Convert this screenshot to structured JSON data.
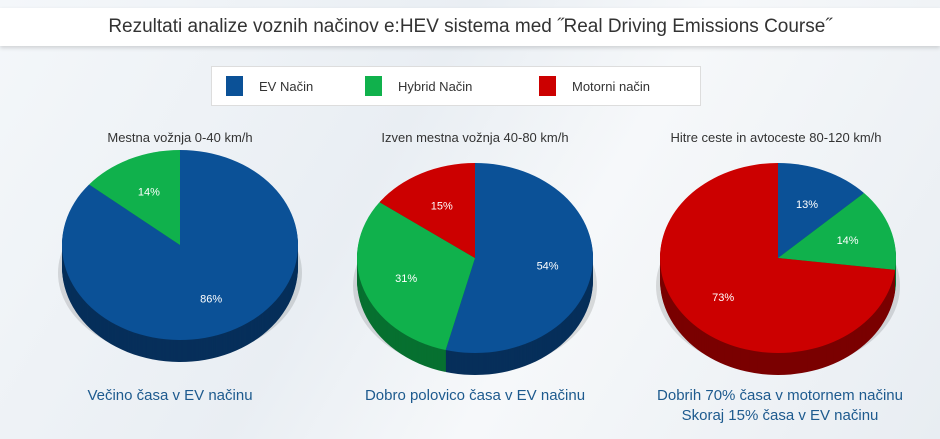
{
  "title": "Rezultati analize voznih načinov e:HEV sistema med ˝Real Driving Emissions Course˝",
  "legend": [
    {
      "label": "EV Način",
      "color": "#0b5197"
    },
    {
      "label": "Hybrid Način",
      "color": "#10b14c"
    },
    {
      "label": "Motorni način",
      "color": "#cc0000"
    }
  ],
  "chart_data": [
    {
      "type": "pie",
      "title": "Mestna vožnja 0-40 km/h",
      "categories": [
        "EV Način",
        "Hybrid Način",
        "Motorni način"
      ],
      "values": [
        86,
        14,
        0
      ],
      "labels": [
        "86%",
        "14%",
        ""
      ],
      "caption": [
        "Večino časa v EV načinu"
      ]
    },
    {
      "type": "pie",
      "title": "Izven mestna vožnja 40-80 km/h",
      "categories": [
        "EV Način",
        "Hybrid Način",
        "Motorni način"
      ],
      "values": [
        54,
        31,
        15
      ],
      "labels": [
        "54%",
        "31%",
        "15%"
      ],
      "caption": [
        "Dobro polovico časa v EV načinu"
      ]
    },
    {
      "type": "pie",
      "title": "Hitre ceste in avtoceste  80-120 km/h",
      "categories": [
        "EV Način",
        "Hybrid Način",
        "Motorni način"
      ],
      "values": [
        13,
        14,
        73
      ],
      "labels": [
        "13%",
        "14%",
        "73%"
      ],
      "caption": [
        "Dobrih 70% časa v motornem načinu",
        "Skoraj 15% časa v EV načinu"
      ]
    }
  ]
}
